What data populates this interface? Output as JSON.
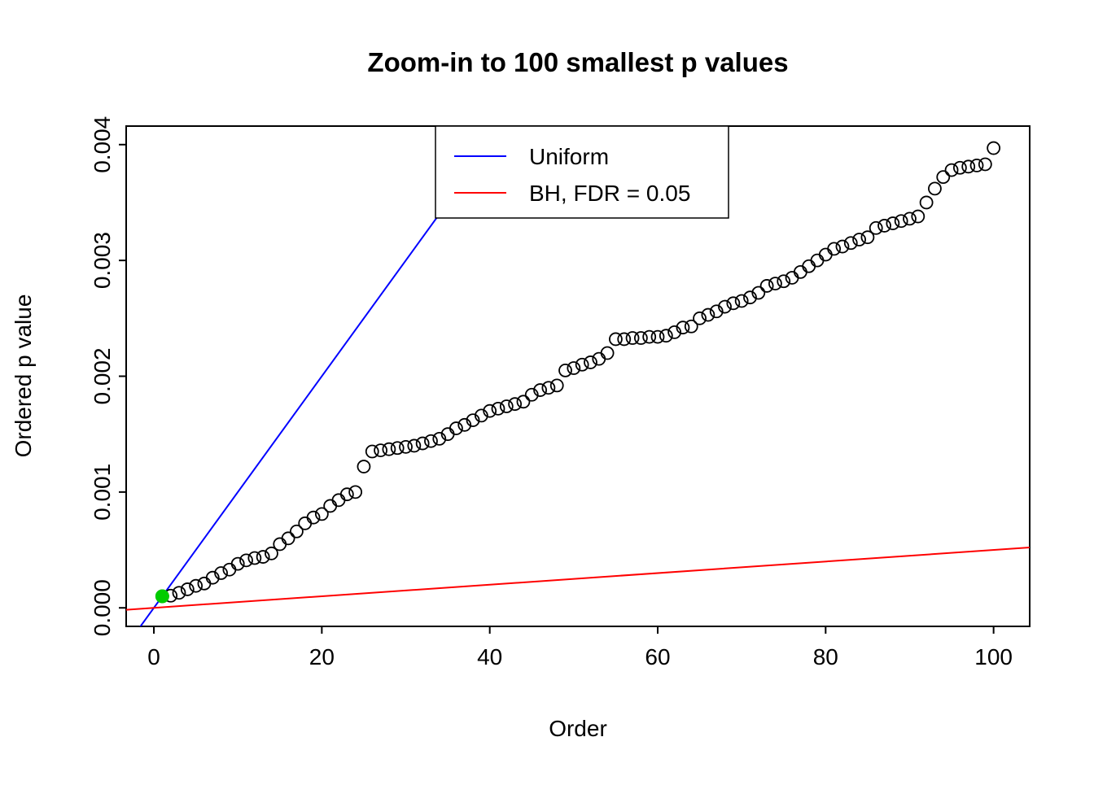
{
  "chart_data": {
    "type": "scatter",
    "title": "Zoom-in to 100 smallest p values",
    "xlabel": "Order",
    "ylabel": "Ordered p value",
    "x_ticks": [
      0,
      20,
      40,
      60,
      80,
      100
    ],
    "x_tick_labels": [
      "0",
      "20",
      "40",
      "60",
      "80",
      "100"
    ],
    "y_ticks": [
      0,
      0.001,
      0.002,
      0.003,
      0.004
    ],
    "y_tick_labels": [
      "0.000",
      "0.001",
      "0.002",
      "0.003",
      "0.004"
    ],
    "xlim": [
      -3.3,
      104.3
    ],
    "ylim": [
      -0.00016,
      0.00416
    ],
    "grid": false,
    "legend_position": "top-center",
    "point_style": {
      "shape": "open-circle",
      "color": "#000000"
    },
    "ordered_p_values_x_start": 1,
    "ordered_p_values": [
      0.0001,
      0.000105,
      0.00013,
      0.00016,
      0.00019,
      0.00021,
      0.00026,
      0.0003,
      0.00033,
      0.00038,
      0.00041,
      0.00043,
      0.00044,
      0.00047,
      0.00055,
      0.0006,
      0.00066,
      0.00073,
      0.00078,
      0.00081,
      0.00088,
      0.00093,
      0.00098,
      0.001,
      0.00122,
      0.00135,
      0.00136,
      0.00137,
      0.00138,
      0.00139,
      0.0014,
      0.00142,
      0.00144,
      0.00146,
      0.0015,
      0.00155,
      0.00158,
      0.00162,
      0.00166,
      0.0017,
      0.00172,
      0.00174,
      0.00176,
      0.00178,
      0.00184,
      0.00188,
      0.0019,
      0.00192,
      0.00205,
      0.00207,
      0.0021,
      0.00212,
      0.00215,
      0.0022,
      0.00232,
      0.00232,
      0.00233,
      0.00233,
      0.00234,
      0.00234,
      0.00235,
      0.00238,
      0.00242,
      0.00243,
      0.0025,
      0.00253,
      0.00256,
      0.0026,
      0.00263,
      0.00265,
      0.00268,
      0.00272,
      0.00278,
      0.0028,
      0.00282,
      0.00285,
      0.0029,
      0.00295,
      0.003,
      0.00305,
      0.0031,
      0.00312,
      0.00315,
      0.00318,
      0.0032,
      0.00328,
      0.0033,
      0.00332,
      0.00334,
      0.00336,
      0.00338,
      0.0035,
      0.00362,
      0.00372,
      0.00378,
      0.0038,
      0.00381,
      0.00382,
      0.00383,
      0.00397
    ],
    "highlight_point": {
      "x": 1,
      "y": 0.0001,
      "color": "#00CC00"
    },
    "lines": [
      {
        "name": "Uniform",
        "slope": 0.0001,
        "intercept": 0,
        "color": "#0000FF"
      },
      {
        "name": "BH, FDR = 0.05",
        "slope": 5e-06,
        "intercept": 0,
        "color": "#FF0000"
      }
    ],
    "legend": [
      {
        "label": "Uniform",
        "color": "#0000FF"
      },
      {
        "label": "BH, FDR = 0.05",
        "color": "#FF0000"
      }
    ]
  }
}
